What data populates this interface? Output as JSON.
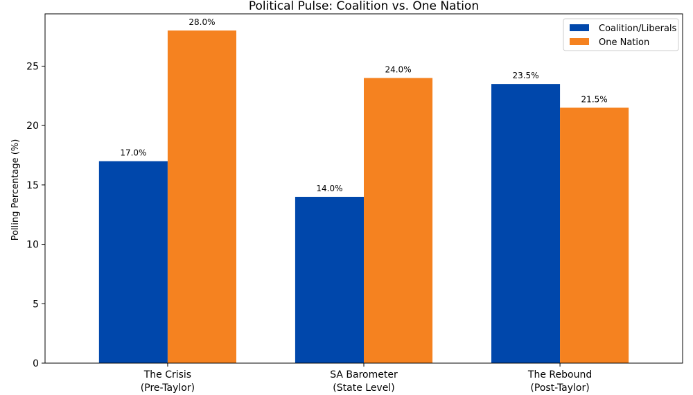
{
  "chart_data": {
    "type": "bar",
    "title": "Political Pulse: Coalition vs. One Nation",
    "xlabel": "",
    "ylabel": "Polling Percentage (%)",
    "ylim": [
      0,
      29.4
    ],
    "yticks": [
      0,
      5,
      10,
      15,
      20,
      25
    ],
    "categories": [
      [
        "The Crisis",
        "(Pre-Taylor)"
      ],
      [
        "SA Barometer",
        "(State Level)"
      ],
      [
        "The Rebound",
        "(Post-Taylor)"
      ]
    ],
    "series": [
      {
        "name": "Coalition/Liberals",
        "color": "#0047AB",
        "values": [
          17.0,
          14.0,
          23.5
        ],
        "labels": [
          "17.0%",
          "14.0%",
          "23.5%"
        ]
      },
      {
        "name": "One Nation",
        "color": "#F58220",
        "values": [
          28.0,
          24.0,
          21.5
        ],
        "labels": [
          "28.0%",
          "24.0%",
          "21.5%"
        ]
      }
    ],
    "grid": false,
    "legend_position": "top-right"
  }
}
